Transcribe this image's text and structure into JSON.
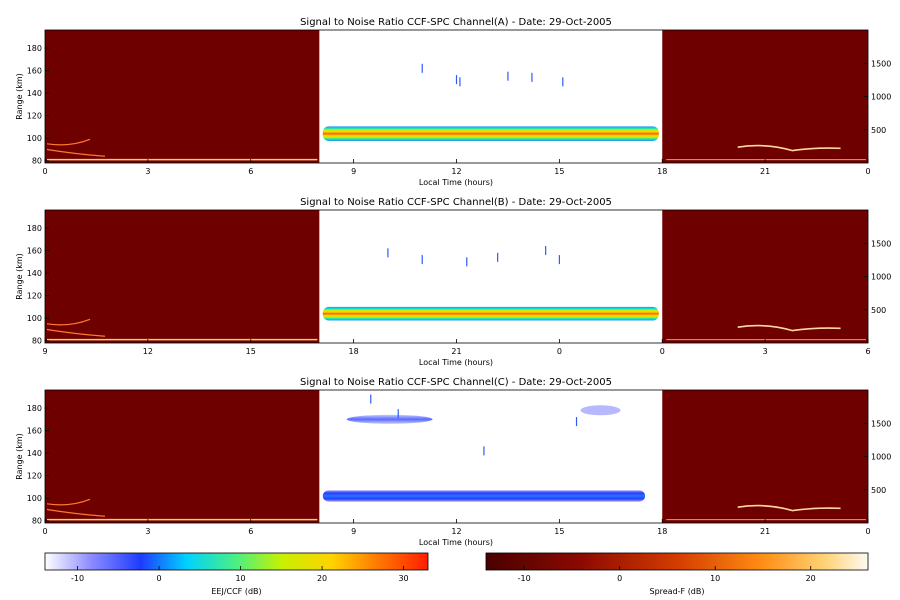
{
  "chart_data": {
    "type": "heatmap",
    "panels": [
      {
        "title": "Signal to Noise Ratio CCF-SPC Channel(A) - Date: 29-Oct-2005",
        "xlabel": "Local Time (hours)",
        "ylabel": "Range (km)",
        "xlim": [
          0,
          24
        ],
        "ylim": [
          78,
          196
        ],
        "right_ylim": [
          0,
          2000
        ],
        "x_ticks": [
          "0",
          "3",
          "6",
          "9",
          "12",
          "15",
          "18",
          "21",
          "0"
        ],
        "y_ticks": [
          80,
          100,
          120,
          140,
          160,
          180
        ],
        "right_y_ticks": [
          500,
          1000,
          1500
        ],
        "white_window": [
          8,
          18
        ],
        "main_echo": {
          "x_start": 8.1,
          "x_end": 17.9,
          "center_km": 104,
          "thickness_km": 13,
          "peak_db": 28
        }
      },
      {
        "title": "Signal to Noise Ratio CCF-SPC Channel(B) - Date: 29-Oct-2005",
        "xlabel": "Local Time (hours)",
        "ylabel": "Range (km)",
        "xlim": [
          0,
          24
        ],
        "ylim": [
          78,
          196
        ],
        "right_ylim": [
          0,
          2000
        ],
        "x_ticks": [
          "9",
          "12",
          "15",
          "18",
          "21",
          "0",
          "0",
          "3",
          "6"
        ],
        "y_ticks": [
          80,
          100,
          120,
          140,
          160,
          180
        ],
        "right_y_ticks": [
          500,
          1000,
          1500
        ],
        "white_window": [
          8,
          18
        ],
        "main_echo": {
          "x_start": 8.1,
          "x_end": 17.9,
          "center_km": 104,
          "thickness_km": 12,
          "peak_db": 27
        }
      },
      {
        "title": "Signal to Noise Ratio CCF-SPC Channel(C) - Date: 29-Oct-2005",
        "xlabel": "Local Time (hours)",
        "ylabel": "Range (km)",
        "xlim": [
          0,
          24
        ],
        "ylim": [
          78,
          196
        ],
        "right_ylim": [
          0,
          2000
        ],
        "x_ticks": [
          "0",
          "3",
          "6",
          "9",
          "12",
          "15",
          "18",
          "21",
          "0"
        ],
        "y_ticks": [
          80,
          100,
          120,
          140,
          160,
          180
        ],
        "right_y_ticks": [
          500,
          1000,
          1500
        ],
        "white_window": [
          8,
          18
        ],
        "main_echo": {
          "x_start": 8.1,
          "x_end": 17.5,
          "center_km": 102,
          "thickness_km": 10,
          "peak_db": 4
        },
        "upper_echo": {
          "x_start": 8.8,
          "x_end": 11.3,
          "center_km": 170,
          "thickness_km": 8,
          "peak_db": -3
        }
      }
    ],
    "colorbars": [
      {
        "label": "EEJ/CCF (dB)",
        "ticks": [
          -10,
          0,
          10,
          20,
          30
        ],
        "range": [
          -14,
          33
        ],
        "colormap": "rainbow"
      },
      {
        "label": "Spread-F (dB)",
        "ticks": [
          -10,
          0,
          10,
          20
        ],
        "range": [
          -14,
          26
        ],
        "colormap": "heat"
      }
    ]
  }
}
